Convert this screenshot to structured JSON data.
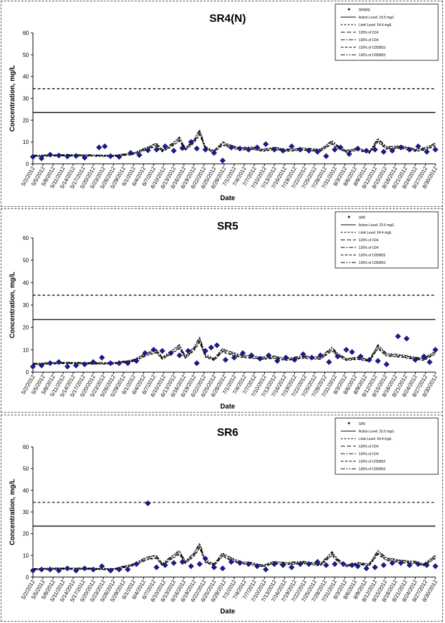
{
  "chart_data": [
    {
      "type": "line",
      "title": "SR4(N)",
      "xlabel": "Date",
      "ylabel": "Concentration, mg/L",
      "ylim": [
        0,
        60
      ],
      "yticks": [
        "0",
        "10",
        "20",
        "30",
        "40",
        "50",
        "60"
      ],
      "x_tick_labels": [
        "5/2/2012",
        "5/5/2012",
        "5/8/2012",
        "5/11/2012",
        "5/14/2012",
        "5/17/2012",
        "5/20/2012",
        "5/23/2012",
        "5/26/2012",
        "5/29/2012",
        "6/1/2012",
        "6/4/2012",
        "6/7/2012",
        "6/10/2012",
        "6/13/2012",
        "6/16/2012",
        "6/19/2012",
        "6/22/2012",
        "6/25/2012",
        "6/28/2012",
        "7/1/2012",
        "7/4/2012",
        "7/7/2012",
        "7/10/2012",
        "7/13/2012",
        "7/16/2012",
        "7/19/2012",
        "7/22/2012",
        "7/25/2012",
        "7/28/2012",
        "7/31/2012",
        "8/3/2012",
        "8/6/2012",
        "8/9/2012",
        "8/12/2012",
        "8/15/2012",
        "8/18/2012",
        "8/21/2012",
        "8/24/2012",
        "8/27/2012",
        "8/30/2012"
      ],
      "legend": [
        "SR4(N)",
        "Action Level: 23.5 mg/L",
        "Limit Level: 34.4 mg/L",
        "120% of C04",
        "130% of C04",
        "120% of C05/B53",
        "130% of C05/B53"
      ],
      "legend_position": "top-right",
      "action_level": 23.5,
      "limit_level": 34.4,
      "observed": [
        [
          0,
          3.2
        ],
        [
          3,
          2.5
        ],
        [
          6,
          4.2
        ],
        [
          9,
          3.8
        ],
        [
          12,
          3.4
        ],
        [
          15,
          3.6
        ],
        [
          18,
          2.8
        ],
        [
          23,
          7.5
        ],
        [
          25,
          8.0
        ],
        [
          27,
          3.5
        ],
        [
          30,
          3.2
        ],
        [
          34,
          5.0
        ],
        [
          37,
          4.0
        ],
        [
          40,
          6.2
        ],
        [
          43,
          6.5
        ],
        [
          46,
          8.0
        ],
        [
          49,
          6.0
        ],
        [
          52,
          7.2
        ],
        [
          55,
          10.0
        ],
        [
          57,
          7.0
        ],
        [
          60,
          6.5
        ],
        [
          63,
          5.0
        ],
        [
          66,
          1.5
        ],
        [
          69,
          7.5
        ],
        [
          72,
          7.0
        ],
        [
          75,
          6.5
        ],
        [
          78,
          7.5
        ],
        [
          81,
          9.0
        ],
        [
          84,
          6.5
        ],
        [
          87,
          6.0
        ],
        [
          90,
          8.0
        ],
        [
          93,
          6.5
        ],
        [
          96,
          6.0
        ],
        [
          99,
          5.5
        ],
        [
          102,
          3.5
        ],
        [
          105,
          6.5
        ],
        [
          107,
          7.5
        ],
        [
          110,
          4.5
        ],
        [
          113,
          7.0
        ],
        [
          116,
          6.0
        ],
        [
          119,
          6.5
        ],
        [
          122,
          5.5
        ],
        [
          125,
          6.0
        ],
        [
          128,
          7.5
        ],
        [
          131,
          6.5
        ],
        [
          134,
          8.0
        ],
        [
          137,
          5.5
        ],
        [
          140,
          6.5
        ]
      ],
      "base_curve": [
        [
          0,
          3.5
        ],
        [
          10,
          3.8
        ],
        [
          20,
          3.7
        ],
        [
          28,
          3.5
        ],
        [
          35,
          4.5
        ],
        [
          40,
          7.0
        ],
        [
          43,
          8.5
        ],
        [
          45,
          5.8
        ],
        [
          48,
          8.0
        ],
        [
          51,
          11.0
        ],
        [
          53,
          6.5
        ],
        [
          56,
          10.0
        ],
        [
          58,
          14.0
        ],
        [
          60,
          7.0
        ],
        [
          63,
          5.5
        ],
        [
          66,
          9.0
        ],
        [
          68,
          8.0
        ],
        [
          72,
          6.5
        ],
        [
          76,
          7.0
        ],
        [
          80,
          6.0
        ],
        [
          84,
          6.8
        ],
        [
          88,
          6.0
        ],
        [
          94,
          6.5
        ],
        [
          100,
          6.0
        ],
        [
          104,
          9.5
        ],
        [
          106,
          7.5
        ],
        [
          109,
          5.5
        ],
        [
          113,
          6.5
        ],
        [
          117,
          5.0
        ],
        [
          120,
          10.5
        ],
        [
          123,
          7.0
        ],
        [
          128,
          7.5
        ],
        [
          133,
          6.0
        ],
        [
          136,
          6.5
        ],
        [
          140,
          8.5
        ]
      ]
    },
    {
      "type": "line",
      "title": "SR5",
      "xlabel": "Date",
      "ylabel": "Concentration, mg/L",
      "ylim": [
        0,
        60
      ],
      "yticks": [
        "0",
        "10",
        "20",
        "30",
        "40",
        "50",
        "60"
      ],
      "x_tick_labels": [
        "5/2/2012",
        "5/5/2012",
        "5/8/2012",
        "5/11/2012",
        "5/14/2012",
        "5/17/2012",
        "5/20/2012",
        "5/23/2012",
        "5/26/2012",
        "5/29/2012",
        "6/1/2012",
        "6/4/2012",
        "6/7/2012",
        "6/10/2012",
        "6/13/2012",
        "6/16/2012",
        "6/19/2012",
        "6/22/2012",
        "6/25/2012",
        "6/28/2012",
        "7/1/2012",
        "7/4/2012",
        "7/7/2012",
        "7/10/2012",
        "7/13/2012",
        "7/16/2012",
        "7/19/2012",
        "7/22/2012",
        "7/25/2012",
        "7/28/2012",
        "7/31/2012",
        "8/3/2012",
        "8/6/2012",
        "8/9/2012",
        "8/12/2012",
        "8/15/2012",
        "8/18/2012",
        "8/21/2012",
        "8/24/2012",
        "8/27/2012",
        "8/30/2012"
      ],
      "legend": [
        "SR5",
        "Action Level: 23.5 mg/L",
        "Limit Level: 34.4 mg/L",
        "120% of C04",
        "130% of C04",
        "120% of C05/B53",
        "130% of C05/B53"
      ],
      "legend_position": "top-right",
      "action_level": 23.5,
      "limit_level": 34.4,
      "observed": [
        [
          0,
          2.5
        ],
        [
          3,
          3.0
        ],
        [
          6,
          4.0
        ],
        [
          9,
          4.5
        ],
        [
          12,
          2.5
        ],
        [
          15,
          3.0
        ],
        [
          18,
          3.5
        ],
        [
          21,
          4.5
        ],
        [
          24,
          6.5
        ],
        [
          27,
          4.0
        ],
        [
          30,
          4.0
        ],
        [
          33,
          4.0
        ],
        [
          36,
          5.0
        ],
        [
          39,
          8.5
        ],
        [
          42,
          10.0
        ],
        [
          45,
          9.5
        ],
        [
          48,
          8.5
        ],
        [
          51,
          7.5
        ],
        [
          54,
          9.5
        ],
        [
          57,
          4.0
        ],
        [
          60,
          9.5
        ],
        [
          62,
          11.0
        ],
        [
          64,
          12.0
        ],
        [
          67,
          5.5
        ],
        [
          70,
          6.5
        ],
        [
          73,
          8.5
        ],
        [
          76,
          7.5
        ],
        [
          79,
          6.0
        ],
        [
          82,
          7.5
        ],
        [
          85,
          5.0
        ],
        [
          88,
          6.5
        ],
        [
          91,
          5.5
        ],
        [
          94,
          8.0
        ],
        [
          97,
          6.5
        ],
        [
          100,
          7.5
        ],
        [
          103,
          4.5
        ],
        [
          106,
          7.0
        ],
        [
          109,
          10.0
        ],
        [
          111,
          9.0
        ],
        [
          114,
          7.0
        ],
        [
          117,
          5.5
        ],
        [
          120,
          5.0
        ],
        [
          123,
          3.5
        ],
        [
          127,
          16.0
        ],
        [
          130,
          15.0
        ],
        [
          133,
          5.5
        ],
        [
          136,
          7.0
        ],
        [
          138,
          4.5
        ],
        [
          140,
          10.0
        ]
      ],
      "base_curve": [
        [
          0,
          3.5
        ],
        [
          10,
          4.0
        ],
        [
          20,
          3.8
        ],
        [
          28,
          3.8
        ],
        [
          35,
          5.0
        ],
        [
          40,
          8.0
        ],
        [
          43,
          9.0
        ],
        [
          45,
          6.0
        ],
        [
          48,
          8.5
        ],
        [
          51,
          11.0
        ],
        [
          53,
          6.5
        ],
        [
          56,
          10.0
        ],
        [
          58,
          14.0
        ],
        [
          60,
          7.0
        ],
        [
          63,
          5.5
        ],
        [
          66,
          9.5
        ],
        [
          68,
          8.5
        ],
        [
          72,
          7.0
        ],
        [
          76,
          6.5
        ],
        [
          80,
          6.0
        ],
        [
          84,
          6.5
        ],
        [
          88,
          5.5
        ],
        [
          94,
          6.5
        ],
        [
          100,
          6.0
        ],
        [
          104,
          10.0
        ],
        [
          106,
          7.5
        ],
        [
          109,
          5.5
        ],
        [
          113,
          6.0
        ],
        [
          117,
          5.0
        ],
        [
          120,
          11.0
        ],
        [
          123,
          7.5
        ],
        [
          128,
          7.0
        ],
        [
          133,
          6.0
        ],
        [
          136,
          5.5
        ],
        [
          140,
          8.5
        ]
      ]
    },
    {
      "type": "line",
      "title": "SR6",
      "xlabel": "Date",
      "ylabel": "Concentration, mg/L",
      "ylim": [
        0,
        60
      ],
      "yticks": [
        "0",
        "10",
        "20",
        "30",
        "40",
        "50",
        "60"
      ],
      "x_tick_labels": [
        "5/2/2012",
        "5/5/2012",
        "5/8/2012",
        "5/11/2012",
        "5/14/2012",
        "5/17/2012",
        "5/20/2012",
        "5/23/2012",
        "5/26/2012",
        "5/29/2012",
        "6/1/2012",
        "6/4/2012",
        "6/7/2012",
        "6/10/2012",
        "6/13/2012",
        "6/16/2012",
        "6/19/2012",
        "6/22/2012",
        "6/25/2012",
        "6/28/2012",
        "7/1/2012",
        "7/4/2012",
        "7/7/2012",
        "7/10/2012",
        "7/13/2012",
        "7/16/2012",
        "7/19/2012",
        "7/22/2012",
        "7/25/2012",
        "7/28/2012",
        "7/31/2012",
        "8/3/2012",
        "8/6/2012",
        "8/9/2012",
        "8/12/2012",
        "8/15/2012",
        "8/18/2012",
        "8/21/2012",
        "8/24/2012",
        "8/27/2012",
        "8/30/2012"
      ],
      "legend": [
        "SR6",
        "Action Level: 23.5 mg/L",
        "Limit Level: 34.4 mg/L",
        "120% of C04",
        "130% of C04",
        "120% of C05/B53",
        "130% of C05/B53"
      ],
      "legend_position": "top-right",
      "action_level": 23.5,
      "limit_level": 34.4,
      "observed": [
        [
          0,
          3.0
        ],
        [
          3,
          3.5
        ],
        [
          6,
          3.5
        ],
        [
          9,
          3.0
        ],
        [
          12,
          4.0
        ],
        [
          15,
          3.0
        ],
        [
          18,
          4.0
        ],
        [
          21,
          3.5
        ],
        [
          24,
          5.0
        ],
        [
          27,
          3.0
        ],
        [
          30,
          3.5
        ],
        [
          33,
          3.5
        ],
        [
          36,
          6.0
        ],
        [
          40,
          34.0
        ],
        [
          43,
          4.5
        ],
        [
          46,
          5.5
        ],
        [
          49,
          6.5
        ],
        [
          52,
          7.0
        ],
        [
          55,
          5.0
        ],
        [
          58,
          6.0
        ],
        [
          60,
          8.5
        ],
        [
          63,
          4.5
        ],
        [
          66,
          4.0
        ],
        [
          69,
          7.0
        ],
        [
          72,
          6.5
        ],
        [
          75,
          6.0
        ],
        [
          78,
          5.0
        ],
        [
          81,
          3.5
        ],
        [
          84,
          6.0
        ],
        [
          87,
          5.5
        ],
        [
          90,
          4.5
        ],
        [
          93,
          6.0
        ],
        [
          96,
          6.0
        ],
        [
          99,
          7.0
        ],
        [
          102,
          5.5
        ],
        [
          105,
          6.0
        ],
        [
          108,
          6.0
        ],
        [
          111,
          5.5
        ],
        [
          113,
          5.0
        ],
        [
          116,
          4.0
        ],
        [
          119,
          4.5
        ],
        [
          122,
          5.5
        ],
        [
          125,
          6.5
        ],
        [
          128,
          6.5
        ],
        [
          131,
          5.5
        ],
        [
          134,
          6.0
        ],
        [
          137,
          5.5
        ],
        [
          140,
          5.0
        ]
      ],
      "base_curve": [
        [
          0,
          3.5
        ],
        [
          10,
          3.8
        ],
        [
          20,
          3.7
        ],
        [
          28,
          3.5
        ],
        [
          35,
          5.5
        ],
        [
          40,
          8.5
        ],
        [
          43,
          9.0
        ],
        [
          45,
          5.5
        ],
        [
          48,
          8.5
        ],
        [
          51,
          11.0
        ],
        [
          53,
          6.5
        ],
        [
          56,
          10.0
        ],
        [
          58,
          14.0
        ],
        [
          60,
          7.0
        ],
        [
          63,
          5.5
        ],
        [
          66,
          10.0
        ],
        [
          68,
          8.5
        ],
        [
          72,
          6.5
        ],
        [
          76,
          6.0
        ],
        [
          80,
          5.0
        ],
        [
          84,
          6.5
        ],
        [
          88,
          6.0
        ],
        [
          94,
          6.5
        ],
        [
          100,
          5.5
        ],
        [
          104,
          10.5
        ],
        [
          106,
          7.5
        ],
        [
          109,
          5.0
        ],
        [
          113,
          6.0
        ],
        [
          117,
          5.5
        ],
        [
          120,
          11.0
        ],
        [
          123,
          8.0
        ],
        [
          128,
          7.0
        ],
        [
          133,
          6.5
        ],
        [
          136,
          5.5
        ],
        [
          140,
          9.0
        ]
      ]
    }
  ]
}
